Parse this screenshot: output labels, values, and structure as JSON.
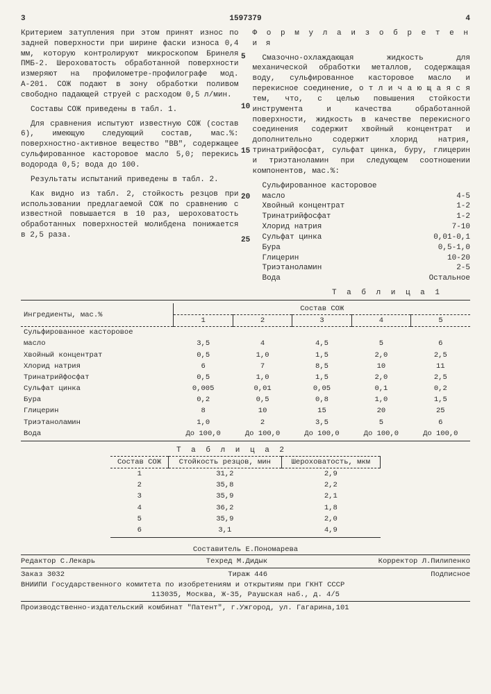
{
  "page": {
    "left_num": "3",
    "right_num": "4",
    "patent_num": "1597379"
  },
  "left": {
    "p1": "Критерием затупления при этом принят износ по задней поверхности при ширине фаски износа 0,4 мм, которую контролируют микроскопом Бринеля ПМБ-2. Шероховатость обработанной поверхности измеряют на профилометре-профилографе мод. А-201. СОЖ подают в зону обработки поливом свободно падающей струей с расходом 0,5 л/мин.",
    "p2": "Составы СОЖ приведены в табл. 1.",
    "p3": "Для сравнения испытуют известную СОЖ (состав 6), имеющую следующий состав, мас.%: поверхностно-активное вещество \"ВВ\", содержащее сульфированное касторовое масло 5,0; перекись водорода 0,5; вода до 100.",
    "p4": "Результаты испытаний приведены в табл. 2.",
    "p5": "Как видно из табл. 2, стойкость резцов при использовании предлагаемой СОЖ по сравнению с известной повышается в 10 раз, шероховатость обработанных поверхностей молибдена понижается в 2,5 раза."
  },
  "right": {
    "formula_title": "Ф о р м у л а  и з о б р е т е н и я",
    "p1": "Смазочно-охлаждающая жидкость для механической обработки металлов, содержащая воду, сульфированное касторовое масло и перекисное соединение, о т л и ч а ю щ а я с я тем, что, с целью повышения стойкости инструмента и качества обработанной поверхности, жидкость в качестве перекисного соединения содержит хвойный концентрат и дополнительно содержит хлорид натрия, тринатрийфосфат, сульфат цинка, буру, глицерин и триэтаноламин при следующем соотношении компонентов, мас.%:",
    "components": [
      {
        "name": "Сульфированное касторовое",
        "val": ""
      },
      {
        "name": "масло",
        "val": "4-5"
      },
      {
        "name": "Хвойный концентрат",
        "val": "1-2"
      },
      {
        "name": "Тринатрийфосфат",
        "val": "1-2"
      },
      {
        "name": "Хлорид натрия",
        "val": "7-10"
      },
      {
        "name": "Сульфат цинка",
        "val": "0,01-0,1"
      },
      {
        "name": "Бура",
        "val": "0,5-1,0"
      },
      {
        "name": "Глицерин",
        "val": "10-20"
      },
      {
        "name": "Триэтаноламин",
        "val": "2-5"
      },
      {
        "name": "Вода",
        "val": "Остальное"
      }
    ]
  },
  "line_markers": [
    "5",
    "10",
    "15",
    "20",
    "25"
  ],
  "table1": {
    "title": "Т а б л и ц а  1",
    "header1": "Ингредиенты, мас.%",
    "header2": "Состав СОЖ",
    "cols": [
      "1",
      "2",
      "3",
      "4",
      "5"
    ],
    "rows": [
      {
        "name": "Сульфированное касторовое",
        "v": [
          "",
          "",
          "",
          "",
          ""
        ]
      },
      {
        "name": "масло",
        "v": [
          "3,5",
          "4",
          "4,5",
          "5",
          "6"
        ]
      },
      {
        "name": "Хвойный концентрат",
        "v": [
          "0,5",
          "1,0",
          "1,5",
          "2,0",
          "2,5"
        ]
      },
      {
        "name": "Хлорид натрия",
        "v": [
          "6",
          "7",
          "8,5",
          "10",
          "11"
        ]
      },
      {
        "name": "Тринатрийфосфат",
        "v": [
          "0,5",
          "1,0",
          "1,5",
          "2,0",
          "2,5"
        ]
      },
      {
        "name": "Сульфат цинка",
        "v": [
          "0,005",
          "0,01",
          "0,05",
          "0,1",
          "0,2"
        ]
      },
      {
        "name": "Бура",
        "v": [
          "0,2",
          "0,5",
          "0,8",
          "1,0",
          "1,5"
        ]
      },
      {
        "name": "Глицерин",
        "v": [
          "8",
          "10",
          "15",
          "20",
          "25"
        ]
      },
      {
        "name": "Триэтаноламин",
        "v": [
          "1,0",
          "2",
          "3,5",
          "5",
          "6"
        ]
      },
      {
        "name": "Вода",
        "v": [
          "До 100,0",
          "До 100,0",
          "До 100,0",
          "До 100,0",
          "До 100,0"
        ]
      }
    ]
  },
  "table2": {
    "title": "Т а б л и ц а  2",
    "headers": [
      "Состав СОЖ",
      "Стойкость резцов, мин",
      "Шероховатость, мкм"
    ],
    "rows": [
      [
        "1",
        "31,2",
        "2,9"
      ],
      [
        "2",
        "35,8",
        "2,2"
      ],
      [
        "3",
        "35,9",
        "2,1"
      ],
      [
        "4",
        "36,2",
        "1,8"
      ],
      [
        "5",
        "35,9",
        "2,0"
      ],
      [
        "6",
        "3,1",
        "4,9"
      ]
    ]
  },
  "footer": {
    "compiler_lbl": "Составитель",
    "compiler": "Е.Пономарева",
    "editor_lbl": "Редактор",
    "editor": "С.Лекарь",
    "techred_lbl": "Техред",
    "techred": "М.Дидык",
    "corrector_lbl": "Корректор",
    "corrector": "Л.Пилипенко",
    "zakaz_lbl": "Заказ",
    "zakaz": "3032",
    "tirazh_lbl": "Тираж",
    "tirazh": "446",
    "podpis": "Подписное",
    "org": "ВНИИПИ Государственного комитета по изобретениям и открытиям при ГКНТ СССР",
    "addr": "113035, Москва, Ж-35, Раушская наб., д. 4/5",
    "prod": "Производственно-издательский комбинат \"Патент\", г.Ужгород, ул. Гагарина,101"
  }
}
